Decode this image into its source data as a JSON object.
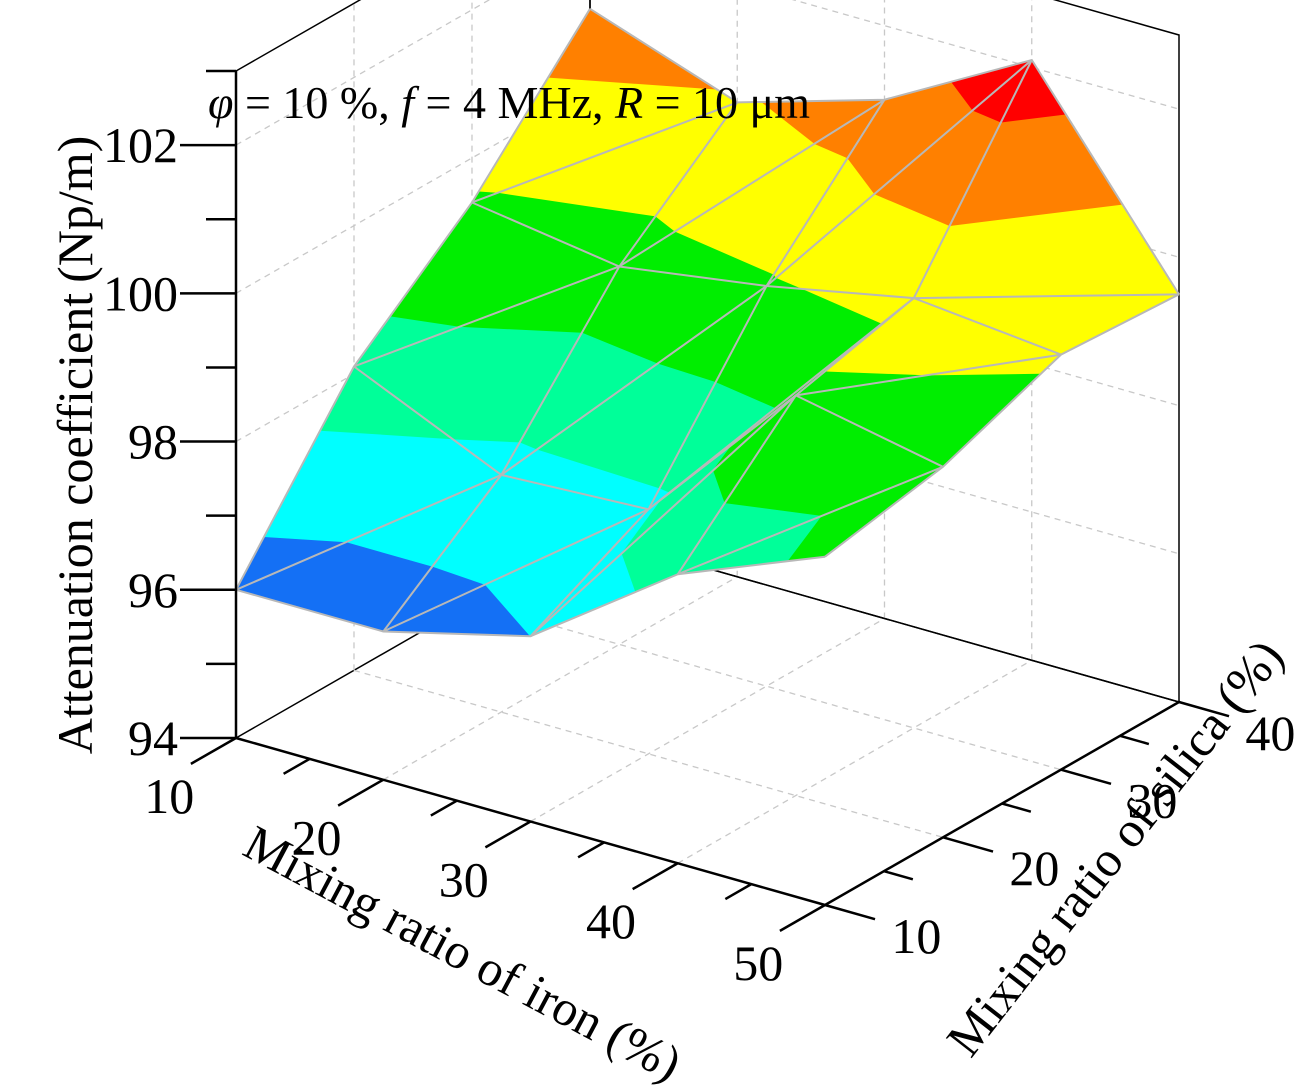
{
  "chart_data": {
    "type": "surface3d",
    "annotation": {
      "phi_symbol": "φ",
      "phi_value": " = 10 %, ",
      "f_symbol": "f",
      "f_value": " = 4 MHz, ",
      "r_symbol": "R",
      "r_value": " = 10 μm"
    },
    "x_axis": {
      "label": "Mixing ratio of iron (%)",
      "ticks": [
        "10",
        "20",
        "30",
        "40",
        "50"
      ],
      "values": [
        10,
        20,
        30,
        40,
        50
      ]
    },
    "y_axis": {
      "label": "Mixing ratio of silica (%)",
      "ticks": [
        "10",
        "20",
        "30",
        "40"
      ],
      "values": [
        10,
        20,
        30,
        40
      ]
    },
    "z_axis": {
      "label": "Attenuation coefficient (Np/m)",
      "ticks": [
        "94",
        "96",
        "98",
        "100",
        "102"
      ],
      "range": [
        94,
        103
      ]
    },
    "surface_z": [
      [
        96.0,
        98.1,
        99.4,
        101.1
      ],
      [
        96.0,
        97.2,
        99.1,
        100.4
      ],
      [
        96.5,
        97.3,
        99.4,
        101.0
      ],
      [
        97.9,
        99.4,
        99.8,
        102.1
      ],
      [
        98.7,
        99.0,
        99.6,
        99.5
      ]
    ],
    "contour_levels": [
      95.5,
      96.5,
      97.5,
      98.5,
      99.5,
      100.5,
      101.5,
      102.5
    ],
    "band_colors": [
      "#0a0ad6",
      "#1470f5",
      "#00ffff",
      "#00ff99",
      "#00ee00",
      "#ffff00",
      "#ff8000",
      "#ff0000"
    ],
    "grid": true
  }
}
